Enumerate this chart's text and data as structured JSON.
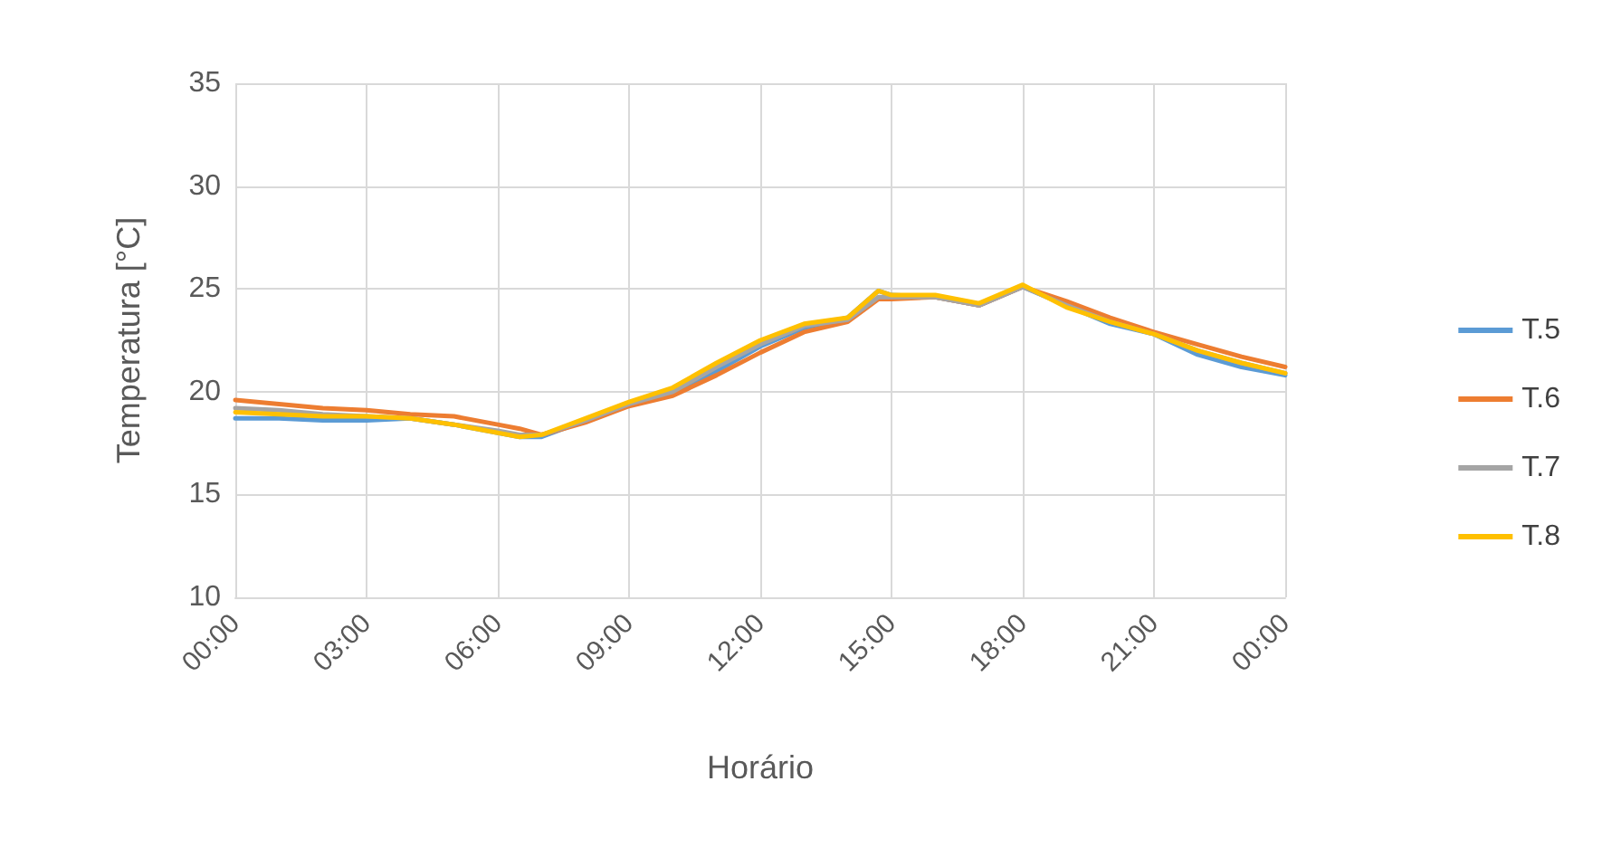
{
  "chart_data": {
    "type": "line",
    "xlabel": "Horário",
    "ylabel": "Temperatura [°C]",
    "x": [
      0,
      1,
      2,
      3,
      4,
      5,
      6,
      6.5,
      7,
      8,
      9,
      10,
      11,
      12,
      13,
      14,
      14.7,
      15,
      16,
      17,
      18,
      19,
      20,
      21,
      22,
      23,
      24
    ],
    "series": [
      {
        "name": "T.5",
        "color": "#5b9bd5",
        "values": [
          18.7,
          18.7,
          18.6,
          18.6,
          18.7,
          18.4,
          18.0,
          17.8,
          17.8,
          18.6,
          19.4,
          20.0,
          21.0,
          22.2,
          23.1,
          23.6,
          24.9,
          24.7,
          24.6,
          24.2,
          25.1,
          24.2,
          23.3,
          22.8,
          21.8,
          21.2,
          20.8
        ]
      },
      {
        "name": "T.6",
        "color": "#ed7d31",
        "values": [
          19.6,
          19.4,
          19.2,
          19.1,
          18.9,
          18.8,
          18.4,
          18.2,
          17.9,
          18.5,
          19.3,
          19.8,
          20.8,
          21.9,
          22.9,
          23.4,
          24.5,
          24.5,
          24.6,
          24.2,
          25.1,
          24.4,
          23.6,
          22.9,
          22.3,
          21.7,
          21.2
        ]
      },
      {
        "name": "T.7",
        "color": "#a5a5a5",
        "values": [
          19.2,
          19.1,
          18.9,
          18.8,
          18.7,
          18.4,
          18.1,
          17.9,
          17.9,
          18.6,
          19.4,
          20.0,
          21.2,
          22.3,
          23.2,
          23.5,
          24.6,
          24.6,
          24.6,
          24.2,
          25.1,
          24.2,
          23.4,
          22.8,
          22.0,
          21.4,
          20.9
        ]
      },
      {
        "name": "T.8",
        "color": "#ffc000",
        "values": [
          19.0,
          18.9,
          18.8,
          18.8,
          18.7,
          18.4,
          18.0,
          17.8,
          17.9,
          18.7,
          19.5,
          20.2,
          21.4,
          22.5,
          23.3,
          23.6,
          24.9,
          24.7,
          24.7,
          24.3,
          25.2,
          24.1,
          23.4,
          22.8,
          22.0,
          21.4,
          20.9
        ]
      }
    ],
    "xlim": [
      0,
      24
    ],
    "xticks": [
      {
        "value": 0,
        "label": "00:00"
      },
      {
        "value": 3,
        "label": "03:00"
      },
      {
        "value": 6,
        "label": "06:00"
      },
      {
        "value": 9,
        "label": "09:00"
      },
      {
        "value": 12,
        "label": "12:00"
      },
      {
        "value": 15,
        "label": "15:00"
      },
      {
        "value": 18,
        "label": "18:00"
      },
      {
        "value": 21,
        "label": "21:00"
      },
      {
        "value": 24,
        "label": "00:00"
      }
    ],
    "ylim": [
      10,
      35
    ],
    "yticks": [
      10,
      15,
      20,
      25,
      30,
      35
    ],
    "grid": true,
    "legend": "right",
    "marker": "none",
    "line_style": "solid"
  }
}
